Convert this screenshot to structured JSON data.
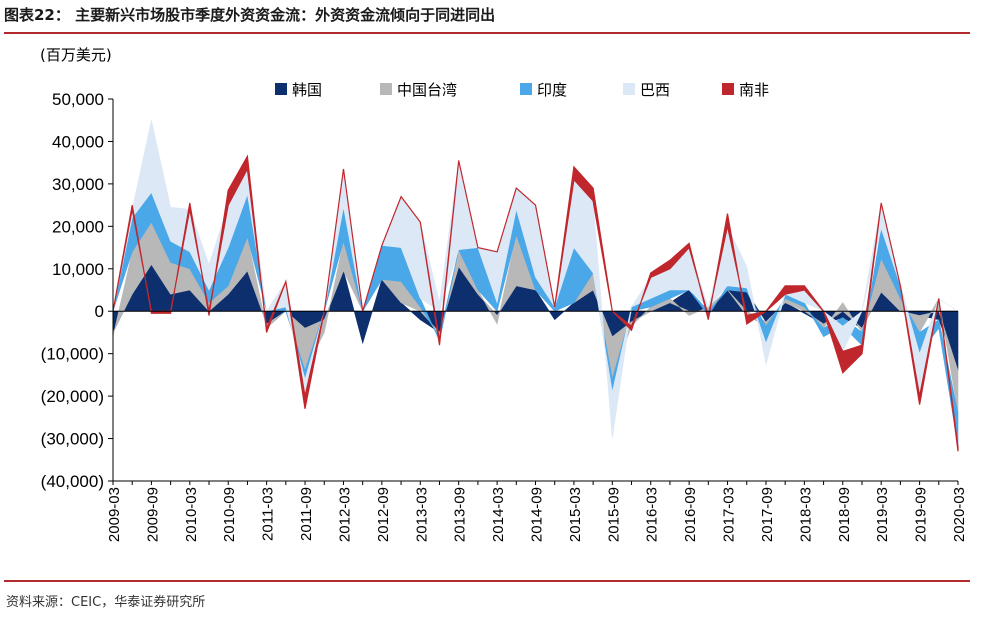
{
  "figure": {
    "title": "图表22：  主要新兴市场股市季度外资资金流：外资资金流倾向于同进同出",
    "unit_label": "(百万美元)",
    "source": "资料来源：CEIC，华泰证券研究所"
  },
  "colors": {
    "rule": "#b22a2e",
    "korea": "#0d2f6e",
    "taiwan": "#b8b8b8",
    "india": "#4aa7e8",
    "brazil": "#dce8f6",
    "south_africa": "#c0272d"
  },
  "chart_data": {
    "type": "area",
    "ylim": [
      -40000,
      50000
    ],
    "y_ticks": [
      50000,
      40000,
      30000,
      20000,
      10000,
      0,
      -10000,
      -20000,
      -30000,
      -40000
    ],
    "y_tick_labels": [
      "50,000",
      "40,000",
      "30,000",
      "20,000",
      "10,000",
      "0",
      "(10,000)",
      "(20,000)",
      "(30,000)",
      "(40,000)"
    ],
    "x_tick_labels": [
      "2009-03",
      "2009-09",
      "2010-03",
      "2010-09",
      "2011-03",
      "2011-09",
      "2012-03",
      "2012-09",
      "2013-03",
      "2013-09",
      "2014-03",
      "2014-09",
      "2015-03",
      "2015-09",
      "2016-03",
      "2016-09",
      "2017-03",
      "2017-09",
      "2018-03",
      "2018-09",
      "2019-03",
      "2019-09",
      "2020-03"
    ],
    "grid": false,
    "legend_position": "top",
    "x": [
      "2009-03",
      "2009-06",
      "2009-09",
      "2009-12",
      "2010-03",
      "2010-06",
      "2010-09",
      "2010-12",
      "2011-03",
      "2011-06",
      "2011-09",
      "2011-12",
      "2012-03",
      "2012-06",
      "2012-09",
      "2012-12",
      "2013-03",
      "2013-06",
      "2013-09",
      "2013-12",
      "2014-03",
      "2014-06",
      "2014-09",
      "2014-12",
      "2015-03",
      "2015-06",
      "2015-09",
      "2015-12",
      "2016-03",
      "2016-06",
      "2016-09",
      "2016-12",
      "2017-03",
      "2017-06",
      "2017-09",
      "2017-12",
      "2018-03",
      "2018-06",
      "2018-09",
      "2018-12",
      "2019-03",
      "2019-06",
      "2019-09",
      "2019-12",
      "2020-03"
    ],
    "series": [
      {
        "name": "韩国",
        "values": [
          -5000,
          4000,
          11000,
          4000,
          5000,
          0,
          4000,
          9500,
          -3000,
          0,
          -4000,
          -2000,
          9500,
          -7500,
          7500,
          2000,
          -2000,
          -5000,
          10500,
          4000,
          -1000,
          6000,
          5000,
          -2000,
          2000,
          5000,
          -6000,
          -2500,
          0,
          2000,
          5000,
          0,
          5000,
          4500,
          -2500,
          2000,
          -500,
          -3000,
          -1500,
          -4000,
          4500,
          0,
          -1000,
          -2000,
          -14000
        ]
      },
      {
        "name": "中国台湾",
        "values": [
          -1000,
          10000,
          10000,
          7500,
          5000,
          2000,
          2000,
          8000,
          -1000,
          0,
          -10000,
          -3000,
          7000,
          0,
          0,
          5000,
          1000,
          -1000,
          4000,
          1000,
          -2000,
          12000,
          0,
          0,
          0,
          4000,
          -10000,
          -1000,
          1000,
          1000,
          -1000,
          1000,
          0,
          -1000,
          -1000,
          1000,
          1000,
          -1000,
          2000,
          -1000,
          8000,
          3000,
          -4000,
          3000,
          -10000
        ]
      },
      {
        "name": "印度",
        "values": [
          0,
          8000,
          7000,
          5000,
          4000,
          3000,
          9000,
          10000,
          0,
          1000,
          -2000,
          0,
          8000,
          0,
          8000,
          8000,
          2000,
          -1000,
          0,
          10000,
          2000,
          6000,
          3000,
          1000,
          13000,
          0,
          -3000,
          1000,
          2000,
          2000,
          0,
          -1000,
          1000,
          1000,
          -4000,
          1000,
          1000,
          -2000,
          -2000,
          -3000,
          7000,
          3000,
          -5000,
          -2000,
          -8000
        ]
      },
      {
        "name": "巴西",
        "values": [
          0,
          2000,
          17000,
          8000,
          10000,
          6000,
          10000,
          6000,
          0,
          6000,
          -4000,
          0,
          9000,
          0,
          0,
          12000,
          18000,
          2000,
          21000,
          0,
          12000,
          5000,
          17000,
          0,
          16000,
          17000,
          -11000,
          0,
          5000,
          5000,
          10000,
          0,
          14000,
          5000,
          -5000,
          0,
          3000,
          0,
          -6000,
          0,
          6000,
          0,
          -10000,
          0,
          0
        ]
      },
      {
        "name": "南非",
        "values": [
          0,
          1000,
          -500,
          -500,
          1500,
          -1000,
          3500,
          3000,
          -1000,
          0,
          -3000,
          0,
          0,
          0,
          0,
          0,
          0,
          -1000,
          0,
          0,
          0,
          0,
          0,
          0,
          3000,
          3000,
          0,
          -1000,
          1000,
          2000,
          1000,
          -1000,
          3000,
          -2000,
          0,
          2000,
          1000,
          0,
          -5000,
          -2000,
          0,
          0,
          -2000,
          0,
          -1000
        ]
      }
    ]
  },
  "legend": [
    {
      "label": "韩国",
      "color": "#0d2f6e"
    },
    {
      "label": "中国台湾",
      "color": "#b8b8b8"
    },
    {
      "label": "印度",
      "color": "#4aa7e8"
    },
    {
      "label": "巴西",
      "color": "#dce8f6"
    },
    {
      "label": "南非",
      "color": "#c0272d"
    }
  ]
}
